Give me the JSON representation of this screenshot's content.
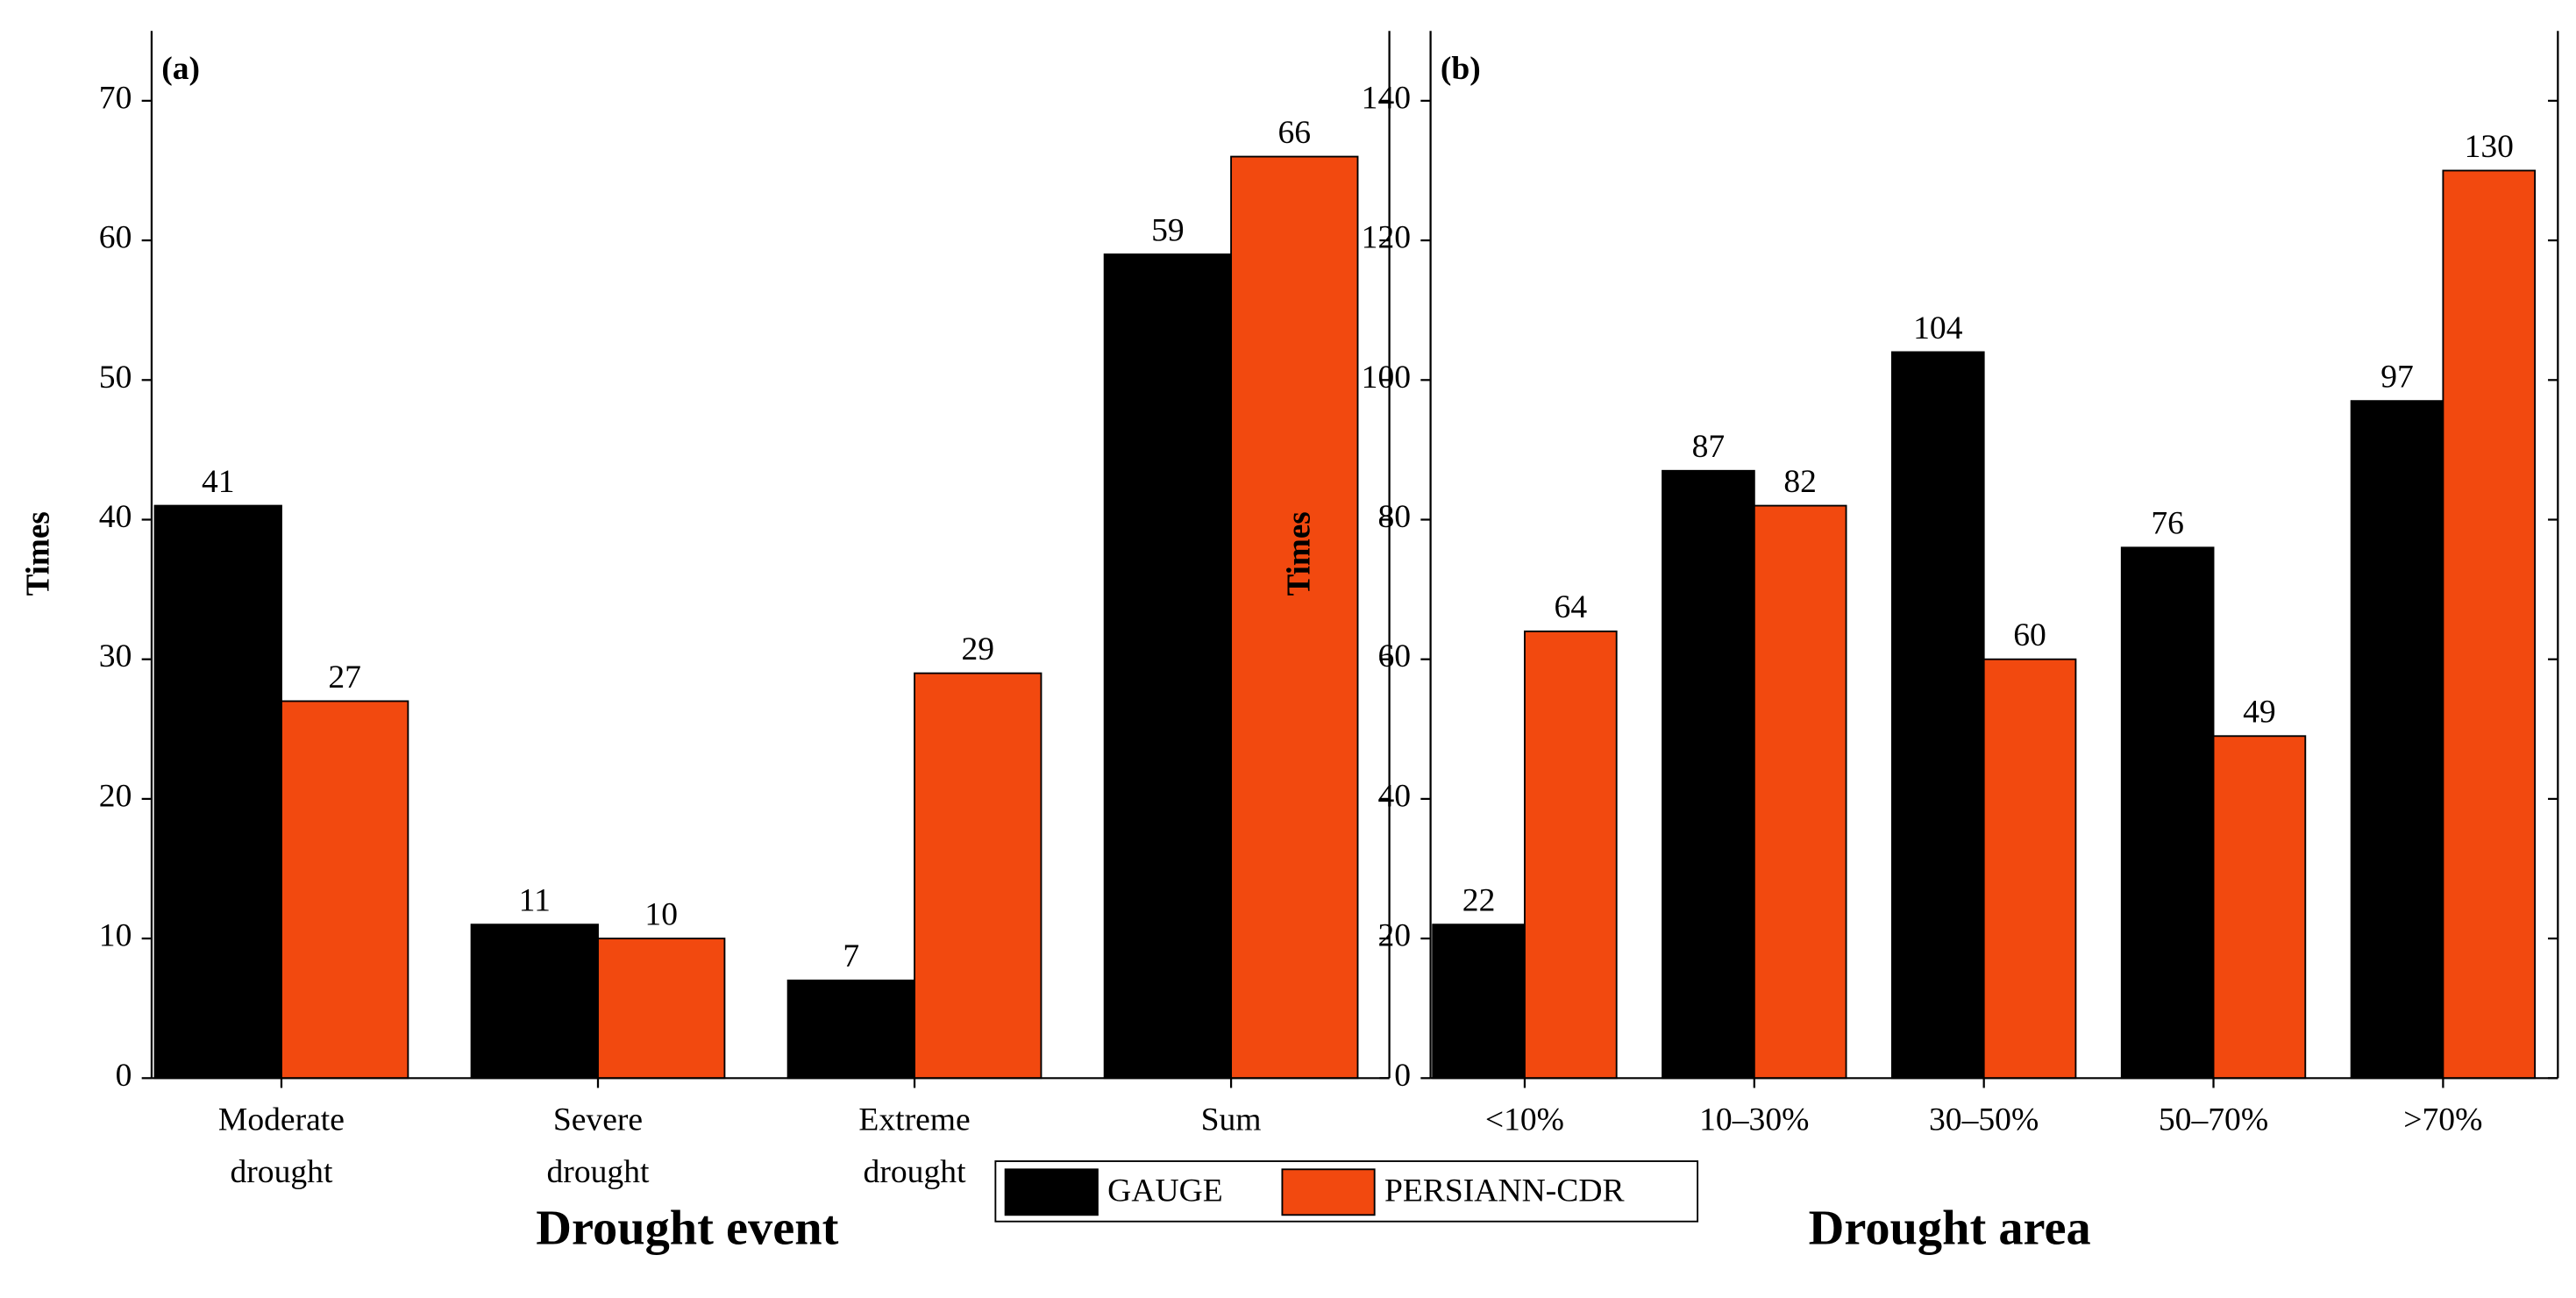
{
  "chart_data": [
    {
      "type": "bar",
      "panel_label": "(a)",
      "ylabel": "Times",
      "xlabel": "Drought event",
      "categories": [
        "Moderate drought",
        "Severe drought",
        "Extreme drought",
        "Sum"
      ],
      "series": [
        {
          "name": "GAUGE",
          "color": "#000000",
          "values": [
            41,
            11,
            7,
            59
          ]
        },
        {
          "name": "PERSIANN-CDR",
          "color": "#f2490f",
          "values": [
            27,
            10,
            29,
            66
          ]
        }
      ],
      "ylim": [
        0,
        75
      ],
      "yticks": [
        0,
        10,
        20,
        30,
        40,
        50,
        60,
        70
      ],
      "legend": "bottom-center"
    },
    {
      "type": "bar",
      "panel_label": "(b)",
      "ylabel": "Times",
      "xlabel": "Drought area",
      "categories": [
        "<10%",
        "10–30%",
        "30–50%",
        "50–70%",
        ">70%"
      ],
      "series": [
        {
          "color": "#000000",
          "values": [
            22,
            87,
            104,
            76,
            97
          ]
        },
        {
          "color": "#f2490f",
          "values": [
            64,
            82,
            60,
            49,
            130
          ]
        }
      ],
      "ylim": [
        0,
        150
      ],
      "yticks": [
        0,
        20,
        40,
        60,
        80,
        100,
        120,
        140
      ]
    }
  ]
}
